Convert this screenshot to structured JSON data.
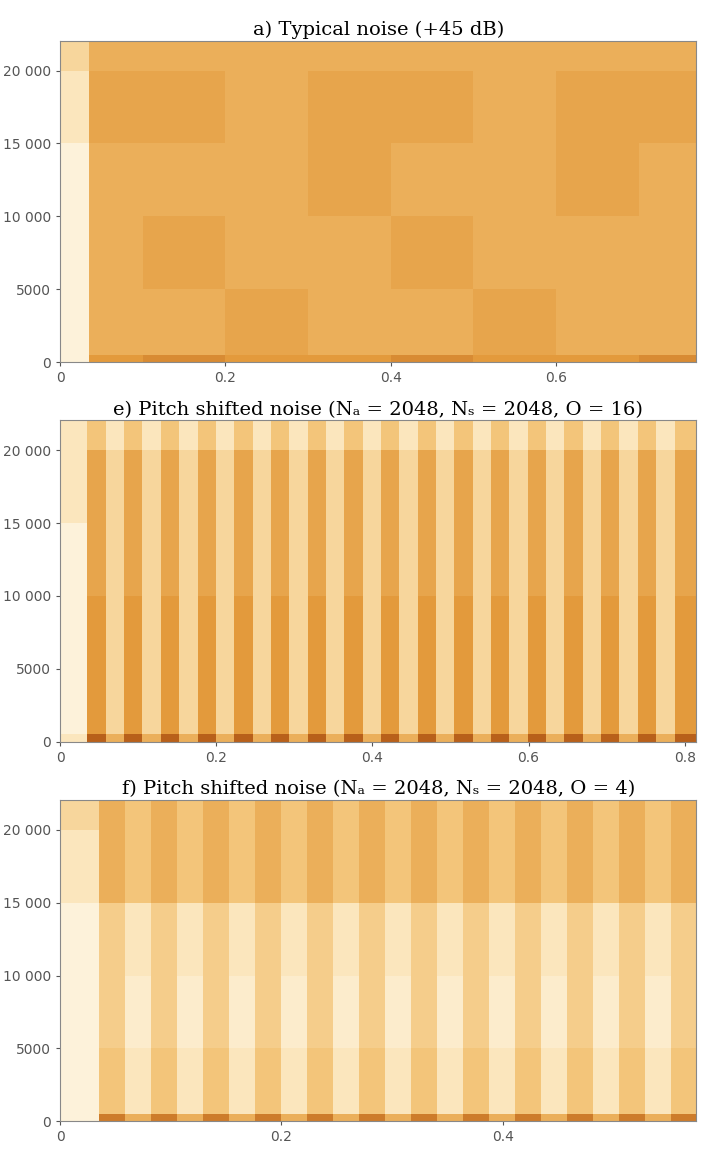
{
  "chart_data": [
    {
      "type": "heatmap",
      "title": "a) Typical noise (+45 dB)",
      "x_edges": [
        0,
        0.035,
        0.1,
        0.2,
        0.3,
        0.4,
        0.5,
        0.6,
        0.7,
        0.77
      ],
      "y_edges": [
        0,
        500,
        5000,
        10000,
        15000,
        20000,
        22050
      ],
      "cells": [
        [
          1,
          6,
          6.5,
          6,
          6,
          6.5,
          6,
          6,
          6.5
        ],
        [
          1,
          5,
          5,
          5.5,
          5,
          5,
          5.5,
          5,
          5
        ],
        [
          1,
          5,
          5.5,
          5,
          5,
          5.5,
          5,
          5,
          5
        ],
        [
          1,
          5,
          5,
          5,
          5.5,
          5,
          5,
          5.5,
          5
        ],
        [
          2,
          5.5,
          5.5,
          5,
          5.5,
          5.5,
          5,
          5.5,
          5.5
        ],
        [
          3,
          5,
          5,
          5,
          5,
          5,
          5,
          5,
          5
        ]
      ],
      "color_range": [
        0,
        10
      ],
      "xlim": [
        0,
        0.77
      ],
      "xticks": [
        0,
        0.2,
        0.4,
        0.6
      ],
      "ylim": [
        0,
        22050
      ],
      "yticks": [
        0,
        5000,
        {
          "value": 10000,
          "label": "10 000"
        },
        {
          "value": 15000,
          "label": "15 000"
        },
        {
          "value": 20000,
          "label": "20 000"
        }
      ]
    },
    {
      "type": "heatmap",
      "title": "e) Pitch shifted noise (Nₐ = 2048, Nₛ = 2048, O = 16)",
      "x_edges": [
        0,
        0.035,
        0.0585,
        0.082,
        0.1055,
        0.129,
        0.1525,
        0.176,
        0.1995,
        0.223,
        0.2465,
        0.27,
        0.2935,
        0.317,
        0.3405,
        0.364,
        0.3875,
        0.411,
        0.4345,
        0.458,
        0.4815,
        0.505,
        0.5285,
        0.552,
        0.5755,
        0.599,
        0.6225,
        0.646,
        0.6695,
        0.693,
        0.7165,
        0.74,
        0.7635,
        0.787,
        0.815
      ],
      "y_edges": [
        0,
        500,
        5000,
        10000,
        15000,
        20000,
        22050
      ],
      "cells": [
        [
          2,
          8,
          5,
          8,
          5,
          8,
          5,
          8,
          5,
          8,
          5,
          8,
          5,
          8,
          5,
          8,
          5,
          8,
          5,
          8,
          5,
          8,
          5,
          8,
          5,
          8,
          5,
          8,
          5,
          8,
          5,
          8,
          5,
          8
        ],
        [
          1,
          6,
          3,
          6,
          3,
          6,
          3,
          6,
          3,
          6,
          3,
          6,
          3,
          6,
          3,
          6,
          3,
          6,
          3,
          6,
          3,
          6,
          3,
          6,
          3,
          6,
          3,
          6,
          3,
          6,
          3,
          6,
          3,
          6
        ],
        [
          1,
          6,
          3,
          6,
          3,
          6,
          3,
          6,
          3,
          6,
          3,
          6,
          3,
          6,
          3,
          6,
          3,
          6,
          3,
          6,
          3,
          6,
          3,
          6,
          3,
          6,
          3,
          6,
          3,
          6,
          3,
          6,
          3,
          6
        ],
        [
          1,
          5.5,
          3,
          5.5,
          3,
          5.5,
          3,
          5.5,
          3,
          5.5,
          3,
          5.5,
          3,
          5.5,
          3,
          5.5,
          3,
          5.5,
          3,
          5.5,
          3,
          5.5,
          3,
          5.5,
          3,
          5.5,
          3,
          5.5,
          3,
          5.5,
          3,
          5.5,
          3,
          5.5
        ],
        [
          2,
          5.5,
          3,
          5.5,
          3,
          5.5,
          3,
          5.5,
          3,
          5.5,
          3,
          5.5,
          3,
          5.5,
          3,
          5.5,
          3,
          5.5,
          3,
          5.5,
          3,
          5.5,
          3,
          5.5,
          3,
          5.5,
          3,
          5.5,
          3,
          5.5,
          3,
          5.5,
          3,
          5.5
        ],
        [
          2,
          4,
          2,
          4,
          2,
          4,
          2,
          4,
          2,
          4,
          2,
          4,
          2,
          4,
          2,
          4,
          2,
          4,
          2,
          4,
          2,
          4,
          2,
          4,
          2,
          4,
          2,
          4,
          2,
          4,
          2,
          4,
          2,
          4
        ]
      ],
      "color_range": [
        0,
        10
      ],
      "xlim": [
        0,
        0.815
      ],
      "xticks": [
        0,
        0.2,
        0.4,
        0.6,
        0.8
      ],
      "ylim": [
        0,
        22050
      ],
      "yticks": [
        0,
        5000,
        {
          "value": 10000,
          "label": "10 000"
        },
        {
          "value": 15000,
          "label": "15 000"
        },
        {
          "value": 20000,
          "label": "20 000"
        }
      ]
    },
    {
      "type": "heatmap",
      "title": "f) Pitch shifted noise (Nₐ = 2048, Nₛ = 2048, O = 4)",
      "x_edges": [
        0,
        0.035,
        0.0585,
        0.082,
        0.1055,
        0.129,
        0.1525,
        0.176,
        0.1995,
        0.223,
        0.2465,
        0.27,
        0.2935,
        0.317,
        0.3405,
        0.364,
        0.3875,
        0.411,
        0.4345,
        0.458,
        0.4815,
        0.505,
        0.5285,
        0.552,
        0.575
      ],
      "y_edges": [
        0,
        500,
        5000,
        10000,
        15000,
        20000,
        22050
      ],
      "cells": [
        [
          1,
          7,
          5,
          7,
          5,
          7,
          5,
          7,
          5,
          7,
          5,
          7,
          5,
          7,
          5,
          7,
          5,
          7,
          5,
          7,
          5,
          7,
          5,
          7
        ],
        [
          1,
          4,
          2,
          4,
          2,
          4,
          2,
          4,
          2,
          4,
          2,
          4,
          2,
          4,
          2,
          4,
          2,
          4,
          2,
          4,
          2,
          4,
          2,
          4
        ],
        [
          1,
          3.5,
          1.5,
          3.5,
          1.5,
          3.5,
          1.5,
          3.5,
          1.5,
          3.5,
          1.5,
          3.5,
          1.5,
          3.5,
          1.5,
          3.5,
          1.5,
          3.5,
          1.5,
          3.5,
          1.5,
          3.5,
          1.5,
          3.5
        ],
        [
          1,
          3.5,
          2,
          3.5,
          2,
          3.5,
          2,
          3.5,
          2,
          3.5,
          2,
          3.5,
          2,
          3.5,
          2,
          3.5,
          2,
          3.5,
          2,
          3.5,
          2,
          3.5,
          2,
          3.5
        ],
        [
          2,
          5,
          4,
          5,
          4,
          5,
          4,
          5,
          4,
          5,
          4,
          5,
          4,
          5,
          4,
          5,
          4,
          5,
          4,
          5,
          4,
          5,
          4,
          5
        ],
        [
          3,
          5,
          4,
          5,
          4,
          5,
          4,
          5,
          4,
          5,
          4,
          5,
          4,
          5,
          4,
          5,
          4,
          5,
          4,
          5,
          4,
          5,
          4,
          5
        ]
      ],
      "color_range": [
        0,
        10
      ],
      "xlim": [
        0,
        0.575
      ],
      "xticks": [
        0,
        0.2,
        0.4
      ],
      "ylim": [
        0,
        22050
      ],
      "yticks": [
        0,
        5000,
        {
          "value": 10000,
          "label": "10 000"
        },
        {
          "value": 15000,
          "label": "15 000"
        },
        {
          "value": 20000,
          "label": "20 000"
        }
      ]
    }
  ]
}
